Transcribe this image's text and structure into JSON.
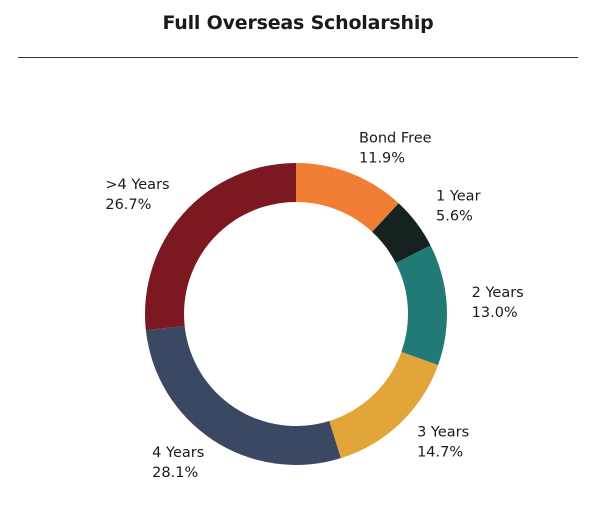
{
  "chart_data": {
    "type": "pie",
    "donut": true,
    "title": "Full Overseas Scholarship",
    "categories": [
      "Bond Free",
      "1 Year",
      "2 Years",
      "3 Years",
      "4 Years",
      ">4 Years"
    ],
    "values": [
      11.9,
      5.6,
      13.0,
      14.7,
      28.1,
      26.7
    ],
    "value_labels": [
      "11.9%",
      "5.6%",
      "13.0%",
      "14.7%",
      "28.1%",
      "26.7%"
    ],
    "colors": [
      "#F07F35",
      "#152220",
      "#227A76",
      "#E2A53A",
      "#3A4862",
      "#7C1820"
    ],
    "unit": "%",
    "start": "top",
    "direction": "clockwise"
  }
}
